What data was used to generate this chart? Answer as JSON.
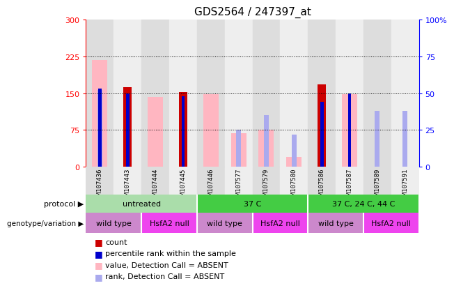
{
  "title": "GDS2564 / 247397_at",
  "samples": [
    "GSM107436",
    "GSM107443",
    "GSM107444",
    "GSM107445",
    "GSM107446",
    "GSM107577",
    "GSM107579",
    "GSM107580",
    "GSM107586",
    "GSM107587",
    "GSM107589",
    "GSM107591"
  ],
  "value_absent": [
    218,
    0,
    142,
    0,
    148,
    68,
    75,
    20,
    0,
    148,
    0,
    0
  ],
  "rank_absent_pct": [
    52,
    0,
    0,
    0,
    0,
    25,
    35,
    22,
    45,
    0,
    38,
    38
  ],
  "count": [
    0,
    162,
    0,
    152,
    0,
    0,
    0,
    0,
    168,
    0,
    0,
    0
  ],
  "rank_present_pct": [
    53,
    50,
    0,
    48,
    0,
    0,
    0,
    0,
    44,
    50,
    0,
    0
  ],
  "ylim_left": [
    0,
    300
  ],
  "ylim_right": [
    0,
    100
  ],
  "yticks_left": [
    0,
    75,
    150,
    225,
    300
  ],
  "yticks_right": [
    0,
    25,
    50,
    75,
    100
  ],
  "ytick_labels_left": [
    "0",
    "75",
    "150",
    "225",
    "300"
  ],
  "ytick_labels_right": [
    "0",
    "25",
    "50",
    "75",
    "100%"
  ],
  "grid_lines": [
    75,
    150,
    225
  ],
  "protocol_groups": [
    {
      "label": "untreated",
      "start": 0,
      "end": 4,
      "color": "#aaddaa"
    },
    {
      "label": "37 C",
      "start": 4,
      "end": 8,
      "color": "#44cc44"
    },
    {
      "label": "37 C, 24 C, 44 C",
      "start": 8,
      "end": 12,
      "color": "#44cc44"
    }
  ],
  "genotype_groups": [
    {
      "label": "wild type",
      "start": 0,
      "end": 2,
      "color": "#cc88cc"
    },
    {
      "label": "HsfA2 null",
      "start": 2,
      "end": 4,
      "color": "#ee44ee"
    },
    {
      "label": "wild type",
      "start": 4,
      "end": 6,
      "color": "#cc88cc"
    },
    {
      "label": "HsfA2 null",
      "start": 6,
      "end": 8,
      "color": "#ee44ee"
    },
    {
      "label": "wild type",
      "start": 8,
      "end": 10,
      "color": "#cc88cc"
    },
    {
      "label": "HsfA2 null",
      "start": 10,
      "end": 12,
      "color": "#ee44ee"
    }
  ],
  "color_value_absent": "#FFB6C1",
  "color_rank_absent": "#aaaaee",
  "color_count": "#cc0000",
  "color_rank_present": "#0000cc",
  "color_col_even": "#dddddd",
  "color_col_odd": "#eeeeee",
  "legend_items": [
    {
      "label": "count",
      "color": "#cc0000"
    },
    {
      "label": "percentile rank within the sample",
      "color": "#0000cc"
    },
    {
      "label": "value, Detection Call = ABSENT",
      "color": "#FFB6C1"
    },
    {
      "label": "rank, Detection Call = ABSENT",
      "color": "#aaaaee"
    }
  ]
}
